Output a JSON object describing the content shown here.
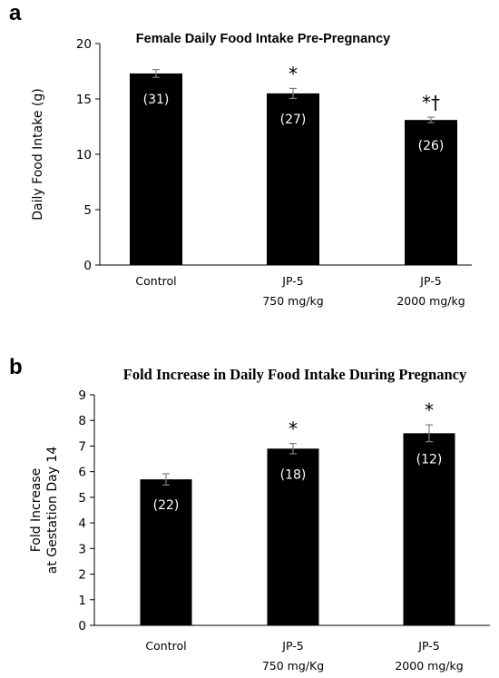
{
  "colors": {
    "bar": "#000000",
    "errorbar": "#7f7f7f",
    "axis": "#000000",
    "n_label": "#ffffff"
  },
  "chart_data": [
    {
      "panel": "a",
      "type": "bar",
      "title": "Female Daily Food Intake Pre-Pregnancy",
      "ylabel": "Daily Food Intake (g)",
      "xlabel": "",
      "ylim": [
        0,
        20
      ],
      "yticks": [
        "0",
        "5",
        "10",
        "15",
        "20"
      ],
      "categories": [
        [
          "Control"
        ],
        [
          "JP-5",
          "750 mg/kg"
        ],
        [
          "JP-5",
          "2000 mg/kg"
        ]
      ],
      "values": [
        17.3,
        15.5,
        13.1
      ],
      "errors": [
        0.35,
        0.45,
        0.25
      ],
      "n_labels": [
        "(31)",
        "(27)",
        "(26)"
      ],
      "significance": [
        "",
        "*",
        "*†"
      ],
      "grid": false,
      "legend": "none"
    },
    {
      "panel": "b",
      "type": "bar",
      "title": "Fold Increase in Daily Food Intake During Pregnancy",
      "ylabel": [
        "Fold Increase",
        "at Gestation Day 14"
      ],
      "xlabel": "",
      "ylim": [
        0,
        9
      ],
      "yticks": [
        "0",
        "1",
        "2",
        "3",
        "4",
        "5",
        "6",
        "7",
        "8",
        "9"
      ],
      "categories": [
        [
          "Control"
        ],
        [
          "JP-5",
          "750 mg/Kg"
        ],
        [
          "JP-5",
          "2000 mg/kg"
        ]
      ],
      "values": [
        5.7,
        6.9,
        7.5
      ],
      "errors": [
        0.22,
        0.2,
        0.33
      ],
      "n_labels": [
        "(22)",
        "(18)",
        "(12)"
      ],
      "significance": [
        "",
        "*",
        "*"
      ],
      "grid": false,
      "legend": "none"
    }
  ]
}
